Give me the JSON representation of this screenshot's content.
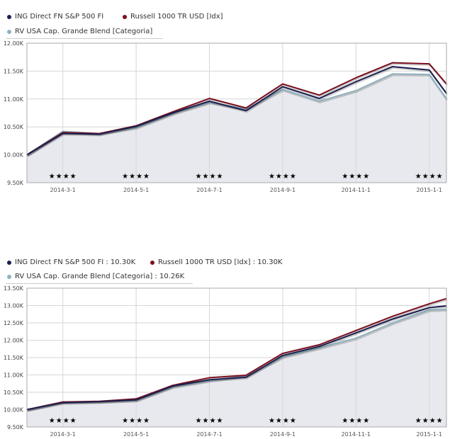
{
  "colors": {
    "ing": "#1b1f4f",
    "russell": "#7b0f1f",
    "rv": "#8fb2bf",
    "fill": "#e8e9ee",
    "grid": "#d6d6d6"
  },
  "chart_data": [
    {
      "type": "line",
      "legend": [
        "ING Direct FN S&P 500 FI",
        "Russell 1000 TR USD [Idx]",
        "RV USA Cap. Grande Blend [Categoria]"
      ],
      "x": [
        "2014-2-1",
        "2014-3-1",
        "2014-4-1",
        "2014-5-1",
        "2014-6-1",
        "2014-7-1",
        "2014-8-1",
        "2014-9-1",
        "2014-10-1",
        "2014-11-1",
        "2014-12-1",
        "2015-1-1",
        "2015-1-15"
      ],
      "x_index": [
        0,
        1,
        2,
        3,
        4,
        5,
        6,
        7,
        8,
        9,
        10,
        11,
        11.5
      ],
      "xticks": [
        {
          "i": 1,
          "label": "2014-3-1"
        },
        {
          "i": 3,
          "label": "2014-5-1"
        },
        {
          "i": 5,
          "label": "2014-7-1"
        },
        {
          "i": 7,
          "label": "2014-9-1"
        },
        {
          "i": 9,
          "label": "2014-11-1"
        },
        {
          "i": 11,
          "label": "2015-1-1"
        }
      ],
      "yticks": [
        12.0,
        11.5,
        11.0,
        10.5,
        10.0,
        9.5
      ],
      "ytick_labels": [
        "12.00K",
        "11.50K",
        "11.00K",
        "10.50K",
        "10.00K",
        "9.50K"
      ],
      "ylim": [
        9.5,
        12.0
      ],
      "ylabel_unit": "K",
      "rating": "★★★★",
      "series": [
        {
          "name": "RV USA Cap. Grande Blend [Categoria]",
          "key": "rv",
          "values": [
            10.0,
            10.42,
            10.38,
            10.49,
            10.74,
            10.94,
            10.82,
            11.17,
            10.96,
            11.15,
            11.45,
            11.44,
            11.0
          ]
        },
        {
          "name": "Russell 1000 TR USD [Idx]",
          "key": "russell",
          "values": [
            10.0,
            10.4,
            10.38,
            10.52,
            10.77,
            11.01,
            10.84,
            11.27,
            11.07,
            11.38,
            11.65,
            11.63,
            11.27
          ]
        },
        {
          "name": "ING Direct FN S&P 500 FI",
          "key": "ing",
          "values": [
            10.0,
            10.38,
            10.37,
            10.51,
            10.75,
            10.96,
            10.79,
            11.22,
            11.01,
            11.31,
            11.58,
            11.52,
            11.1
          ]
        }
      ],
      "grid": true
    },
    {
      "type": "line",
      "legend": [
        "ING Direct FN S&P 500 FI : 10.30K",
        "Russell 1000 TR USD [Idx] : 10.30K",
        "RV USA Cap. Grande Blend [Categoria] : 10.26K"
      ],
      "x": [
        "2014-2-1",
        "2014-3-1",
        "2014-4-1",
        "2014-5-1",
        "2014-6-1",
        "2014-7-1",
        "2014-8-1",
        "2014-9-1",
        "2014-10-1",
        "2014-11-1",
        "2014-12-1",
        "2015-1-1",
        "2015-1-15"
      ],
      "x_index": [
        0,
        1,
        2,
        3,
        4,
        5,
        6,
        7,
        8,
        9,
        10,
        11,
        11.5
      ],
      "xticks": [
        {
          "i": 1,
          "label": "2014-3-1"
        },
        {
          "i": 3,
          "label": "2014-5-1"
        },
        {
          "i": 5,
          "label": "2014-7-1"
        },
        {
          "i": 7,
          "label": "2014-9-1"
        },
        {
          "i": 9,
          "label": "2014-11-1"
        },
        {
          "i": 11,
          "label": "2015-1-1"
        }
      ],
      "yticks": [
        13.5,
        13.0,
        12.5,
        12.0,
        11.5,
        11.0,
        10.5,
        10.0,
        9.5
      ],
      "ytick_labels": [
        "13.50K",
        "13.00K",
        "12.50K",
        "12.00K",
        "11.50K",
        "11.00K",
        "10.50K",
        "10.00K",
        "9.50K"
      ],
      "ylim": [
        9.5,
        13.5
      ],
      "ylabel_unit": "K",
      "rating": "★★★★",
      "series": [
        {
          "name": "RV USA Cap. Grande Blend [Categoria]",
          "key": "rv",
          "values": [
            10.0,
            10.22,
            10.23,
            10.27,
            10.66,
            10.84,
            10.97,
            11.52,
            11.78,
            12.06,
            12.5,
            12.87,
            12.89
          ]
        },
        {
          "name": "Russell 1000 TR USD [Idx]",
          "key": "russell",
          "values": [
            10.0,
            10.22,
            10.24,
            10.31,
            10.7,
            10.92,
            10.99,
            11.62,
            11.87,
            12.28,
            12.69,
            13.05,
            13.2
          ]
        },
        {
          "name": "ING Direct FN S&P 500 FI",
          "key": "ing",
          "values": [
            10.0,
            10.2,
            10.23,
            10.28,
            10.68,
            10.86,
            10.93,
            11.56,
            11.82,
            12.21,
            12.61,
            12.94,
            12.99
          ]
        }
      ],
      "grid": true
    }
  ]
}
